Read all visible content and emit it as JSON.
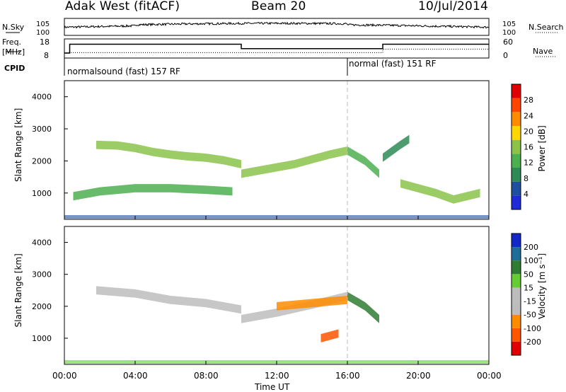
{
  "header": {
    "title": "Adak West (fitACF)",
    "beam": "Beam 20",
    "date": "10/Jul/2014"
  },
  "side_labels": {
    "nsky": "N.Sky",
    "nsearch": "N.Search",
    "freq": "Freq.",
    "freq_unit": "[MHz]",
    "nave": "Nave",
    "cpid": "CPID"
  },
  "cpid_segments": [
    {
      "label": "normalsound (fast) 157 RF",
      "start_hour": 0
    },
    {
      "label": "normal (fast) 151 RF",
      "start_hour": 16
    }
  ],
  "colors": {
    "marker_line": "#bbbbbb",
    "power_scale": [
      "#1f2bd6",
      "#1f4fa0",
      "#2e8b57",
      "#4caf50",
      "#8bc34a",
      "#ffd700",
      "#ff8c00",
      "#ff4500",
      "#e00000"
    ],
    "velocity_scale": [
      "#1428c8",
      "#1e6e9a",
      "#2e7d32",
      "#66cc33",
      "#bdbdbd",
      "#bdbdbd",
      "#ff8c00",
      "#ff5500",
      "#e00000"
    ]
  },
  "chart_data": [
    {
      "type": "line",
      "name": "noise",
      "xlabel": "",
      "ylabel": "",
      "xlim": [
        0,
        24
      ],
      "left_axis": {
        "label": "N.Sky",
        "ticks": [
          "10^0",
          "10^5"
        ]
      },
      "right_axis": {
        "label": "N.Search",
        "ticks": [
          "10^0",
          "10^5"
        ]
      },
      "x_ticks": [
        "00:00",
        "04:00",
        "08:00",
        "12:00",
        "16:00",
        "20:00",
        "00:00"
      ]
    },
    {
      "type": "line",
      "name": "frequency-nave",
      "xlim": [
        0,
        24
      ],
      "left_axis": {
        "label": "Freq. [MHz]",
        "ticks": [
          "8",
          "18"
        ],
        "ylim": [
          8,
          18
        ]
      },
      "right_axis": {
        "label": "Nave",
        "ticks": [
          "0",
          "60"
        ],
        "ylim": [
          0,
          60
        ]
      },
      "series": [
        {
          "name": "Freq.",
          "x": [
            0,
            0.3,
            0.3,
            10,
            10,
            18,
            18,
            24
          ],
          "y": [
            10.6,
            10.6,
            15.2,
            15.2,
            12.9,
            12.9,
            15.2,
            15.2
          ]
        },
        {
          "name": "Nave",
          "x": [
            0,
            10,
            10,
            18,
            18,
            24
          ],
          "y": [
            17,
            17,
            17,
            17,
            28,
            28
          ]
        }
      ]
    },
    {
      "type": "heatmap",
      "name": "power",
      "ylabel": "Slant Range [km]",
      "yticks": [
        1000,
        2000,
        3000,
        4000
      ],
      "ylim": [
        180,
        4500
      ],
      "xlim": [
        0,
        24
      ],
      "x_ticks": [
        "00:00",
        "04:00",
        "08:00",
        "12:00",
        "16:00",
        "20:00",
        "00:00"
      ],
      "colorbar": {
        "label": "Power [dB]",
        "ticks": [
          "4",
          "8",
          "12",
          "16",
          "20",
          "24",
          "28"
        ],
        "range": [
          0,
          30
        ]
      },
      "echo_bands": [
        {
          "x": [
            1.8,
            3,
            4,
            5,
            6,
            7,
            8,
            9,
            10
          ],
          "y": [
            2500,
            2480,
            2400,
            2280,
            2200,
            2140,
            2100,
            2020,
            1900
          ],
          "value": 14
        },
        {
          "x": [
            10,
            11,
            12,
            13,
            14,
            15,
            16
          ],
          "y": [
            1600,
            1700,
            1800,
            1900,
            2050,
            2200,
            2320
          ],
          "value": 16
        },
        {
          "x": [
            16,
            17,
            17.8
          ],
          "y": [
            2320,
            2000,
            1600
          ],
          "value": 12
        },
        {
          "x": [
            18,
            18.5,
            19,
            19.5
          ],
          "y": [
            2100,
            2300,
            2500,
            2680
          ],
          "value": 8
        },
        {
          "x": [
            0.5,
            2,
            4,
            6,
            8,
            9.5
          ],
          "y": [
            900,
            1050,
            1150,
            1150,
            1100,
            1050
          ],
          "value": 12
        },
        {
          "x": [
            19,
            20,
            21,
            22,
            23.5
          ],
          "y": [
            1300,
            1150,
            1000,
            800,
            1000
          ],
          "value": 16
        }
      ]
    },
    {
      "type": "heatmap",
      "name": "velocity",
      "ylabel": "Slant Range [km]",
      "yticks": [
        1000,
        2000,
        3000,
        4000
      ],
      "ylim": [
        180,
        4500
      ],
      "xlim": [
        0,
        24
      ],
      "xlabel": "Time UT",
      "x_ticks": [
        "00:00",
        "04:00",
        "08:00",
        "12:00",
        "16:00",
        "20:00",
        "00:00"
      ],
      "colorbar": {
        "label": "Velocity [m s⁻¹]",
        "ticks": [
          "200",
          "100",
          "50",
          "15",
          "-15",
          "-50",
          "-100",
          "-200"
        ],
        "range": [
          -250,
          250
        ]
      },
      "echo_bands": [
        {
          "x": [
            1.8,
            4,
            6,
            8,
            10
          ],
          "y": [
            2500,
            2400,
            2200,
            2100,
            1900
          ],
          "value": 0
        },
        {
          "x": [
            10,
            12,
            14,
            16
          ],
          "y": [
            1600,
            1800,
            2050,
            2320
          ],
          "value": 0
        },
        {
          "x": [
            16,
            17,
            17.8
          ],
          "y": [
            2320,
            2000,
            1600
          ],
          "value": 60
        },
        {
          "x": [
            14.5,
            15.5
          ],
          "y": [
            1000,
            1150
          ],
          "value": -70
        },
        {
          "x": [
            12,
            14,
            16
          ],
          "y": [
            2000,
            2100,
            2200
          ],
          "value": -40
        }
      ]
    }
  ]
}
